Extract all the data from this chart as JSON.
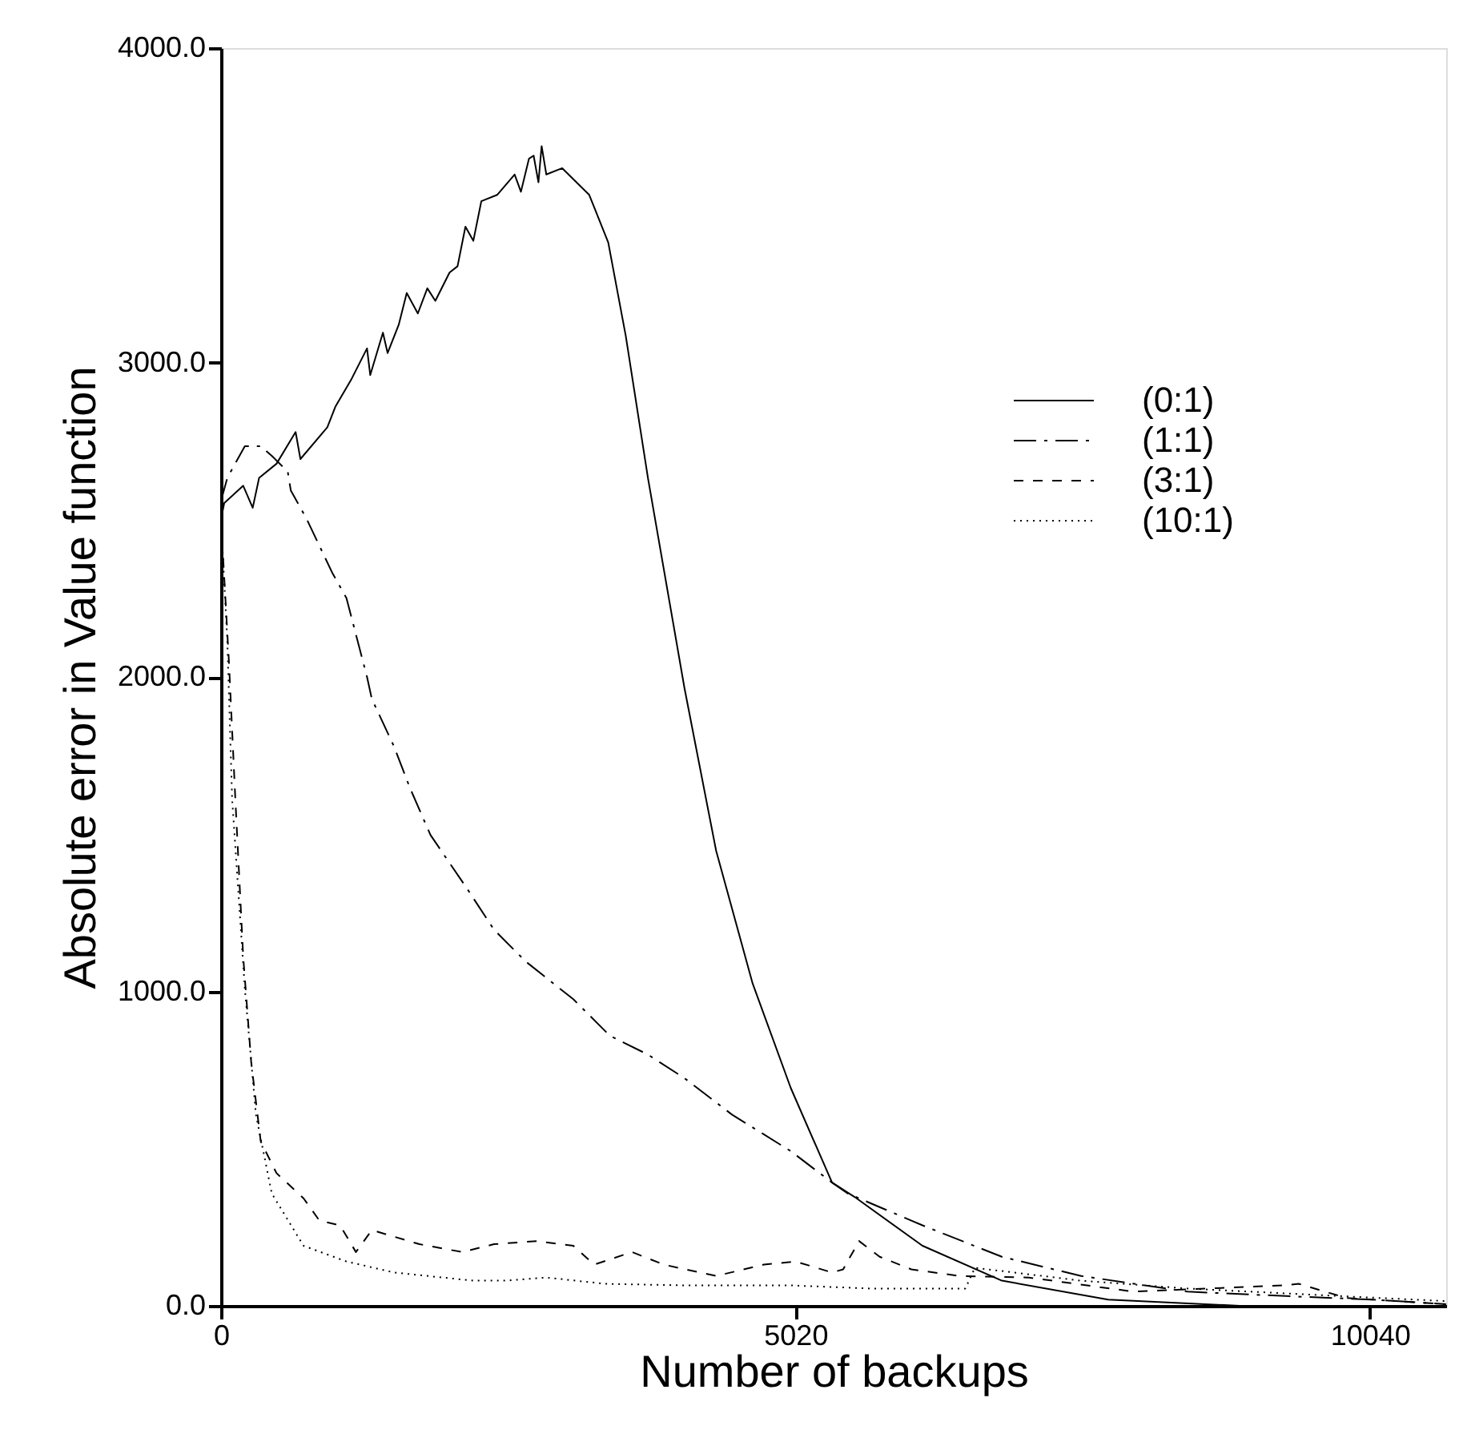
{
  "chart_data": {
    "type": "line",
    "xlabel": "Number of backups",
    "ylabel": "Absolute error in Value function",
    "xlim": [
      0,
      10707
    ],
    "ylim": [
      0,
      4000
    ],
    "xticks": [
      0,
      5020,
      10040
    ],
    "yticks": [
      {
        "value": 0,
        "label": "0.0"
      },
      {
        "value": 1000,
        "label": "1000.0"
      },
      {
        "value": 2000,
        "label": "2000.0"
      },
      {
        "value": 3000,
        "label": "3000.0"
      },
      {
        "value": 4000,
        "label": "4000.0"
      }
    ],
    "grid": false,
    "legend": "right",
    "marker": "none",
    "series": [
      {
        "name": "(0:1)",
        "color": "#000000",
        "line_style": "solid",
        "x": [
          0,
          28,
          194,
          277,
          333,
          485,
          652,
          694,
          929,
          999,
          1137,
          1276,
          1304,
          1415,
          1456,
          1553,
          1623,
          1720,
          1803,
          1873,
          1997,
          2067,
          2136,
          2205,
          2275,
          2413,
          2566,
          2621,
          2691,
          2732,
          2774,
          2802,
          2843,
          2982,
          3218,
          3384,
          3537,
          3731,
          4050,
          4327,
          4646,
          4979,
          5340,
          5534,
          6130,
          6824,
          7753,
          8905,
          10707
        ],
        "values": [
          2502,
          2553,
          2608,
          2538,
          2633,
          2678,
          2779,
          2693,
          2794,
          2859,
          2945,
          3045,
          2960,
          3095,
          3030,
          3120,
          3221,
          3156,
          3236,
          3196,
          3286,
          3306,
          3432,
          3387,
          3513,
          3533,
          3598,
          3543,
          3648,
          3658,
          3573,
          3688,
          3598,
          3618,
          3533,
          3382,
          3085,
          2633,
          1965,
          1447,
          1025,
          693,
          392,
          347,
          191,
          80,
          20,
          0,
          0
        ]
      },
      {
        "name": "(1:1)",
        "color": "#000000",
        "line_style": "dashdot",
        "x": [
          0,
          55,
          208,
          347,
          444,
          583,
          610,
          749,
          860,
          971,
          1096,
          1276,
          1318,
          1512,
          1650,
          1831,
          2150,
          2386,
          2663,
          3079,
          3398,
          3731,
          4050,
          4466,
          4979,
          5340,
          5479,
          6130,
          6824,
          7517,
          8447,
          9362,
          10056,
          10707
        ],
        "values": [
          2560,
          2633,
          2734,
          2734,
          2703,
          2653,
          2593,
          2502,
          2417,
          2332,
          2251,
          2000,
          1930,
          1779,
          1648,
          1497,
          1327,
          1196,
          1095,
          975,
          859,
          799,
          724,
          608,
          492,
          392,
          357,
          256,
          156,
          95,
          45,
          30,
          20,
          5
        ]
      },
      {
        "name": "(3:1)",
        "color": "#000000",
        "line_style": "dashed",
        "x": [
          0,
          69,
          125,
          194,
          264,
          347,
          485,
          721,
          860,
          1040,
          1179,
          1318,
          1734,
          2108,
          2386,
          2760,
          3079,
          3260,
          3592,
          3870,
          4327,
          4744,
          5021,
          5340,
          5437,
          5576,
          5756,
          6033,
          6450,
          7060,
          7975,
          9279,
          9418,
          9834,
          10707
        ],
        "values": [
          2500,
          2050,
          1613,
          1110,
          774,
          523,
          422,
          342,
          271,
          256,
          171,
          241,
          196,
          171,
          196,
          206,
          191,
          131,
          171,
          131,
          95,
          131,
          141,
          106,
          116,
          206,
          156,
          116,
          95,
          90,
          45,
          65,
          70,
          25,
          5
        ]
      },
      {
        "name": "(10:1)",
        "color": "#000000",
        "line_style": "dotted",
        "x": [
          0,
          55,
          97,
          208,
          305,
          444,
          721,
          1096,
          1512,
          2205,
          2483,
          2843,
          3357,
          4050,
          4979,
          5673,
          6505,
          6588,
          7517,
          8447,
          9834,
          10707
        ],
        "values": [
          2500,
          2116,
          1613,
          1010,
          608,
          357,
          191,
          141,
          106,
          80,
          80,
          90,
          70,
          65,
          65,
          55,
          55,
          121,
          80,
          55,
          30,
          15
        ]
      }
    ]
  }
}
